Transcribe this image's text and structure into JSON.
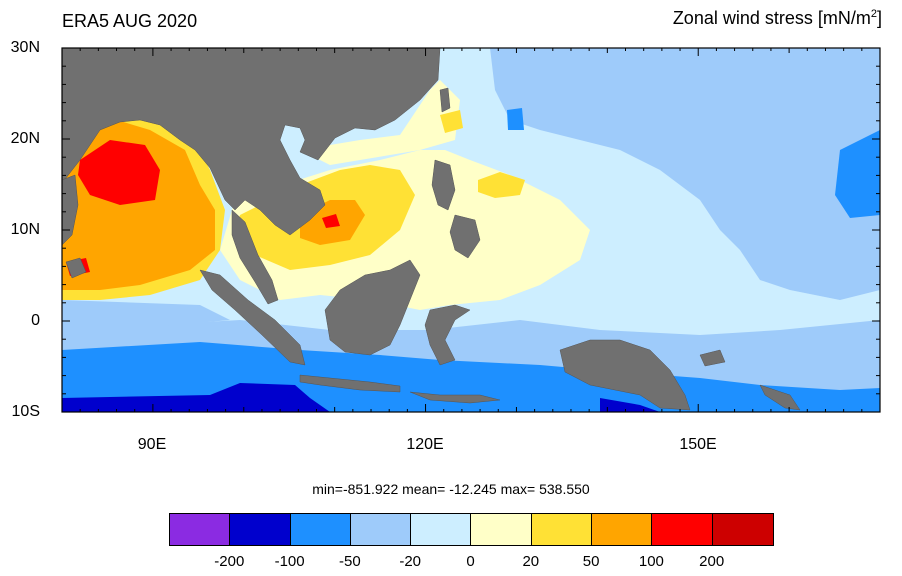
{
  "title_left": "ERA5 AUG 2020",
  "title_right": {
    "text": "Zonal wind stress [mN/m",
    "sup": "2",
    "close": "]"
  },
  "y_labels": [
    "30N",
    "20N",
    "10N",
    "0",
    "10S"
  ],
  "x_labels": [
    "90E",
    "120E",
    "150E"
  ],
  "stats": "min=-851.922  mean= -12.245  max= 538.550",
  "colorbar": {
    "colors": [
      "#8b2be2",
      "#0000cd",
      "#1e90ff",
      "#9ecbfa",
      "#cdeeff",
      "#ffffc8",
      "#ffe135",
      "#ffa500",
      "#ff0000",
      "#cd0000"
    ],
    "labels": [
      "-200",
      "-100",
      "-50",
      "-20",
      "0",
      "20",
      "50",
      "100",
      "200"
    ]
  },
  "land_color": "#707070"
}
